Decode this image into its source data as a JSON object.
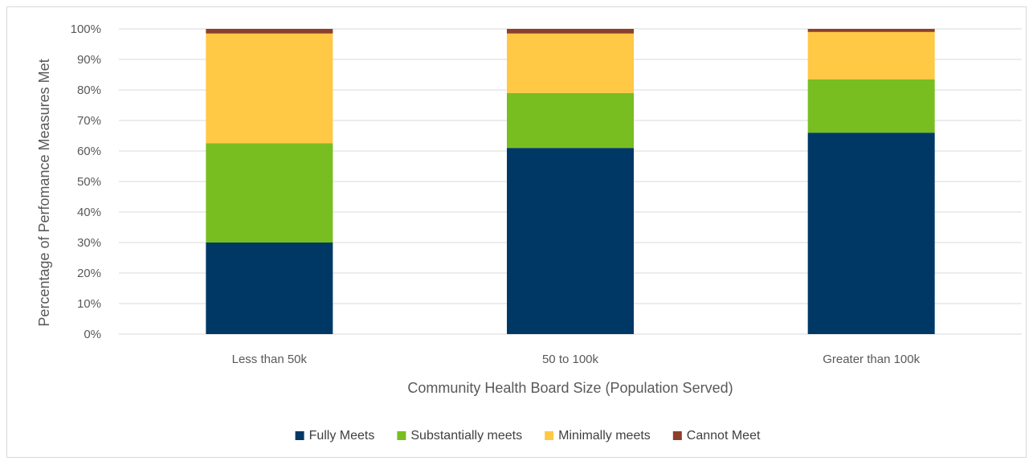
{
  "chart_data": {
    "type": "bar",
    "stacked": true,
    "categories": [
      "Less than 50k",
      "50 to 100k",
      "Greater than 100k"
    ],
    "series": [
      {
        "name": "Fully Meets",
        "color": "#003865",
        "values": [
          30,
          61,
          66
        ]
      },
      {
        "name": "Substantially meets",
        "color": "#78BE21",
        "values": [
          32.5,
          18,
          17.5
        ]
      },
      {
        "name": "Minimally meets",
        "color": "#FFC845",
        "values": [
          36,
          19.5,
          15.5
        ]
      },
      {
        "name": "Cannot Meet",
        "color": "#8D3F2B",
        "values": [
          1.5,
          1.5,
          1
        ]
      }
    ],
    "xlabel": "Community Health Board Size (Population Served)",
    "ylabel": "Percentage of Perfomance Measures Met",
    "ylim": [
      0,
      100
    ],
    "yticks": [
      "0%",
      "10%",
      "20%",
      "30%",
      "40%",
      "50%",
      "60%",
      "70%",
      "80%",
      "90%",
      "100%"
    ],
    "grid": true,
    "legend_position": "bottom"
  }
}
